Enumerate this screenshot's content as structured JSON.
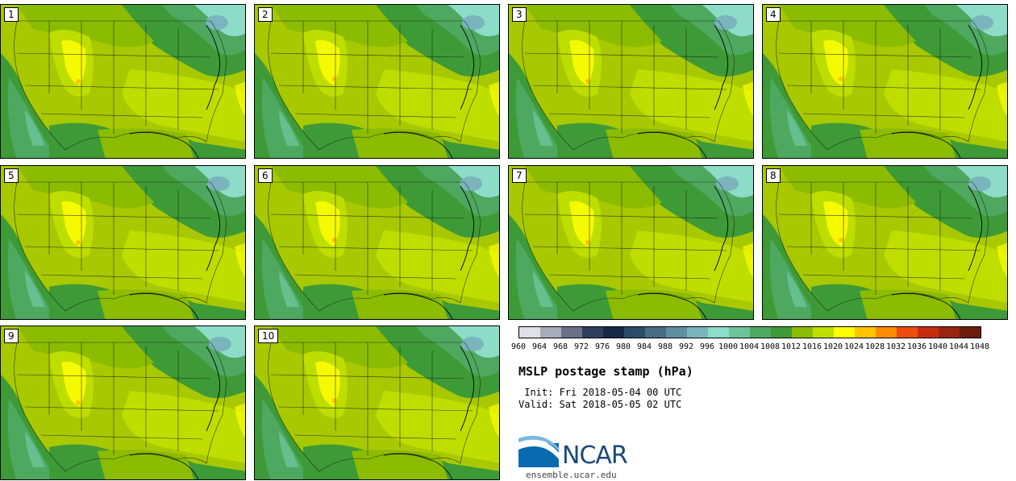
{
  "panels": [
    {
      "label": "1"
    },
    {
      "label": "2"
    },
    {
      "label": "3"
    },
    {
      "label": "4"
    },
    {
      "label": "5"
    },
    {
      "label": "6"
    },
    {
      "label": "7"
    },
    {
      "label": "8"
    },
    {
      "label": "9"
    },
    {
      "label": "10"
    }
  ],
  "colorbar": {
    "colors": [
      "#dde0e4",
      "#a8acb8",
      "#6a7088",
      "#2f3d5a",
      "#152844",
      "#2b4b6b",
      "#476d85",
      "#5f8f9e",
      "#7ab4bc",
      "#8cdcc8",
      "#6cc49a",
      "#4ea860",
      "#3e9a36",
      "#8bbc00",
      "#bede00",
      "#ffff00",
      "#ffc400",
      "#ff8c00",
      "#ec4c0c",
      "#c82c10",
      "#9a2410",
      "#6e1c0c"
    ],
    "ticks": [
      "960",
      "964",
      "968",
      "972",
      "976",
      "980",
      "984",
      "988",
      "992",
      "996",
      "1000",
      "1004",
      "1008",
      "1012",
      "1016",
      "1020",
      "1024",
      "1028",
      "1032",
      "1036",
      "1040",
      "1044",
      "1048"
    ]
  },
  "title": "MSLP postage stamp (hPa)",
  "init": " Init: Fri 2018-05-04 00 UTC",
  "valid": "Valid: Sat 2018-05-05 02 UTC",
  "logo": {
    "text": "NCAR",
    "url": "ensemble.ucar.edu"
  }
}
